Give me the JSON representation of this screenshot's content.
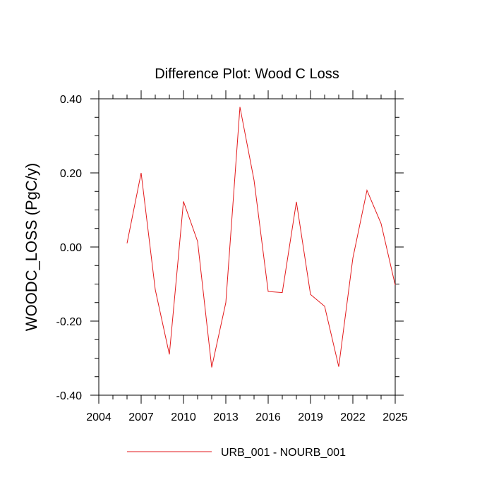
{
  "chart_data": {
    "type": "line",
    "title": "Difference Plot: Wood C Loss",
    "ylabel": "WOODC_LOSS  (PgC/y)",
    "xlabel": "",
    "xlim": [
      2004,
      2025
    ],
    "ylim": [
      -0.4,
      0.4
    ],
    "x_ticks": [
      2004,
      2007,
      2010,
      2013,
      2016,
      2019,
      2022,
      2025
    ],
    "x_tick_labels": [
      "2004",
      "2007",
      "2010",
      "2013",
      "2016",
      "2019",
      "2022",
      "2025"
    ],
    "y_ticks": [
      -0.4,
      -0.2,
      0.0,
      0.2,
      0.4
    ],
    "y_tick_labels": [
      "-0.40",
      "-0.20",
      "0.00",
      "0.20",
      "0.40"
    ],
    "grid": false,
    "legend_position": "bottom-center",
    "series": [
      {
        "name": "URB_001 - NOURB_001",
        "color": "#e31a1c",
        "x": [
          2006,
          2007,
          2008,
          2009,
          2010,
          2011,
          2012,
          2013,
          2014,
          2015,
          2016,
          2017,
          2018,
          2019,
          2020,
          2021,
          2022,
          2023,
          2024,
          2025
        ],
        "y": [
          0.01,
          0.2,
          -0.115,
          -0.29,
          0.123,
          0.015,
          -0.325,
          -0.15,
          0.378,
          0.18,
          -0.12,
          -0.123,
          0.122,
          -0.128,
          -0.16,
          -0.323,
          -0.03,
          0.153,
          0.063,
          -0.103
        ]
      }
    ]
  }
}
